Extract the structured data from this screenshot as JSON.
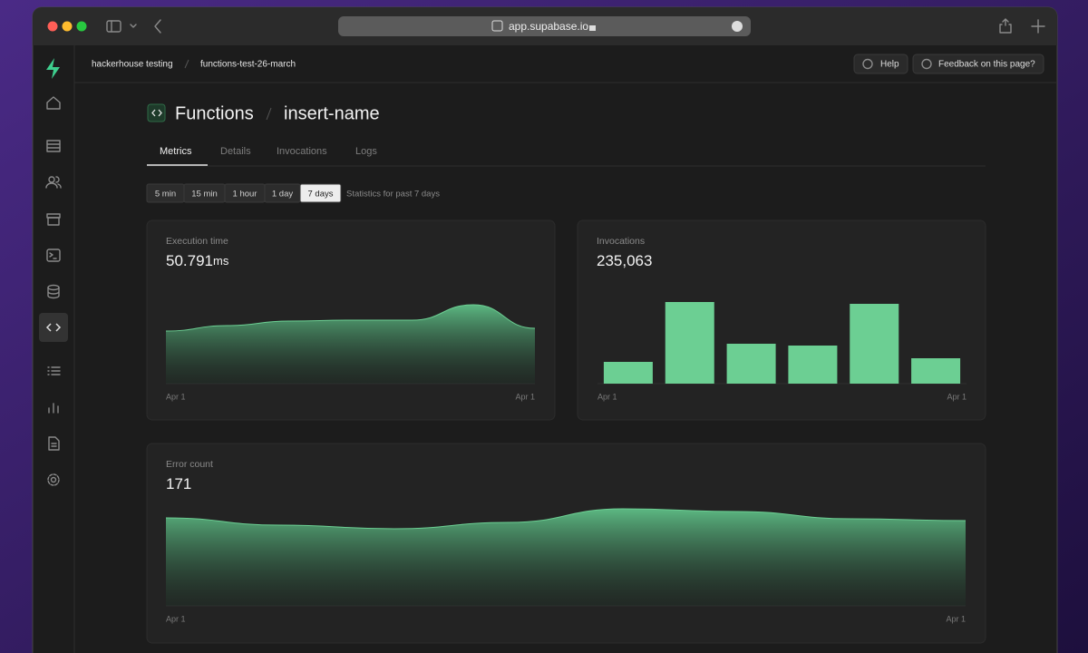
{
  "browser": {
    "url": "app.supabase.io"
  },
  "header": {
    "breadcrumb": [
      "hackerhouse testing",
      "functions-test-26-march"
    ],
    "buttons": [
      "Help",
      "Feedback on this page?"
    ]
  },
  "page": {
    "title": "Functions",
    "subtitle": "insert-name",
    "tabs": [
      "Metrics",
      "Details",
      "Invocations",
      "Logs"
    ],
    "active_tab": 0,
    "time_ranges": [
      "5 min",
      "15 min",
      "1 hour",
      "1 day",
      "7 days"
    ],
    "active_time_range": 4,
    "range_note": "Statistics for past 7 days"
  },
  "panels": [
    {
      "title": "Execution time",
      "value": "50.791",
      "unit": "ms",
      "chart": {
        "type": "area",
        "color": "#6ccf93",
        "values": [
          58,
          64,
          69,
          70,
          70,
          87,
          61
        ],
        "ylim": [
          0,
          110
        ],
        "x_labels": [
          "Apr 1",
          "Apr 1"
        ]
      }
    },
    {
      "title": "Invocations",
      "value": "235,063",
      "chart": {
        "type": "bar",
        "color": "#6ccf93",
        "values": [
          24,
          90,
          44,
          42,
          88,
          28
        ],
        "ylim": [
          0,
          100
        ],
        "x_labels": [
          "Apr 1",
          "Apr 1"
        ]
      }
    },
    {
      "title": "Error count",
      "value": "171",
      "chart": {
        "type": "area",
        "color": "#6ccf93",
        "values": [
          97,
          89,
          85,
          92,
          107,
          104,
          96,
          94
        ],
        "ylim": [
          0,
          120
        ],
        "x_labels": [
          "Apr 1",
          "Apr 1"
        ]
      }
    }
  ]
}
